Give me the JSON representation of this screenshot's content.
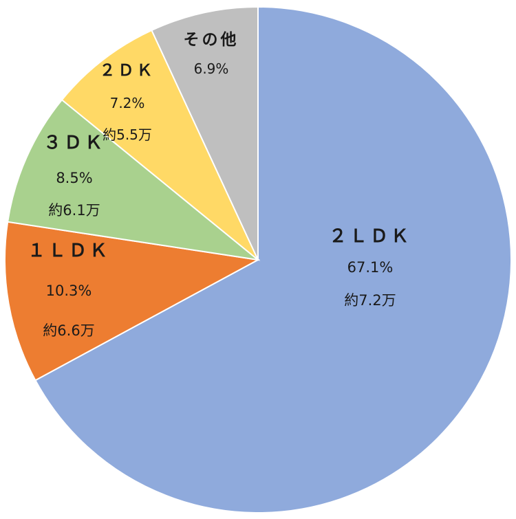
{
  "chart_data": {
    "type": "pie",
    "title": "",
    "start": "top",
    "direction": "clockwise",
    "slices": [
      {
        "name": "２ＬＤＫ",
        "percent_label": "67.1%",
        "value": 67.1,
        "price_label": "約7.2万",
        "color": "#8FAADC"
      },
      {
        "name": "１ＬＤＫ",
        "percent_label": "10.3%",
        "value": 10.3,
        "price_label": "約6.6万",
        "color": "#ED7D31"
      },
      {
        "name": "３ＤＫ",
        "percent_label": "8.5%",
        "value": 8.5,
        "price_label": "約6.1万",
        "color": "#A9D18E"
      },
      {
        "name": "２ＤＫ",
        "percent_label": "7.2%",
        "value": 7.2,
        "price_label": "約5.5万",
        "color": "#FFD966"
      },
      {
        "name": "その他",
        "percent_label": "6.9%",
        "value": 6.9,
        "price_label": "",
        "color": "#BFBFBF"
      }
    ]
  }
}
